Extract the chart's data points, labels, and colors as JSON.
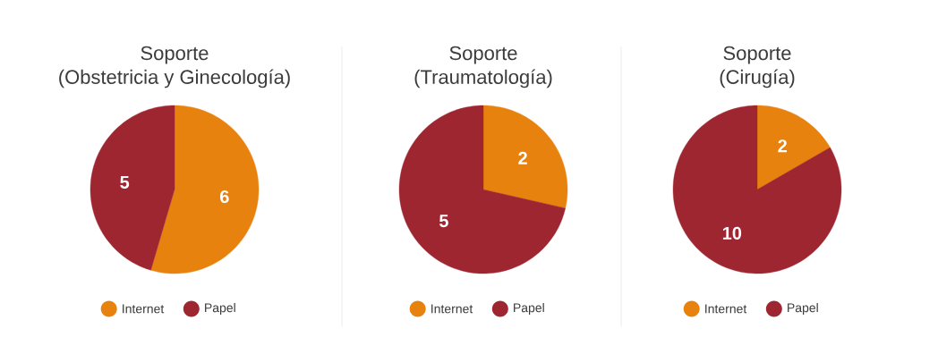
{
  "chart_data": [
    {
      "type": "pie",
      "title": "Soporte",
      "subtitle": "(Obstetricia y Ginecología)",
      "categories": [
        "Internet",
        "Papel"
      ],
      "values": [
        6,
        5
      ],
      "colors": [
        "#e8820f",
        "#9e2631"
      ],
      "data_labels": true,
      "legend": "bottom"
    },
    {
      "type": "pie",
      "title": "Soporte",
      "subtitle": "(Traumatología)",
      "categories": [
        "Internet",
        "Papel"
      ],
      "values": [
        2,
        5
      ],
      "colors": [
        "#e8820f",
        "#9e2631"
      ],
      "data_labels": true,
      "legend": "bottom"
    },
    {
      "type": "pie",
      "title": "Soporte",
      "subtitle": "(Cirugía)",
      "categories": [
        "Internet",
        "Papel"
      ],
      "values": [
        2,
        10
      ],
      "colors": [
        "#e8820f",
        "#9e2631"
      ],
      "data_labels": true,
      "legend": "bottom"
    }
  ]
}
